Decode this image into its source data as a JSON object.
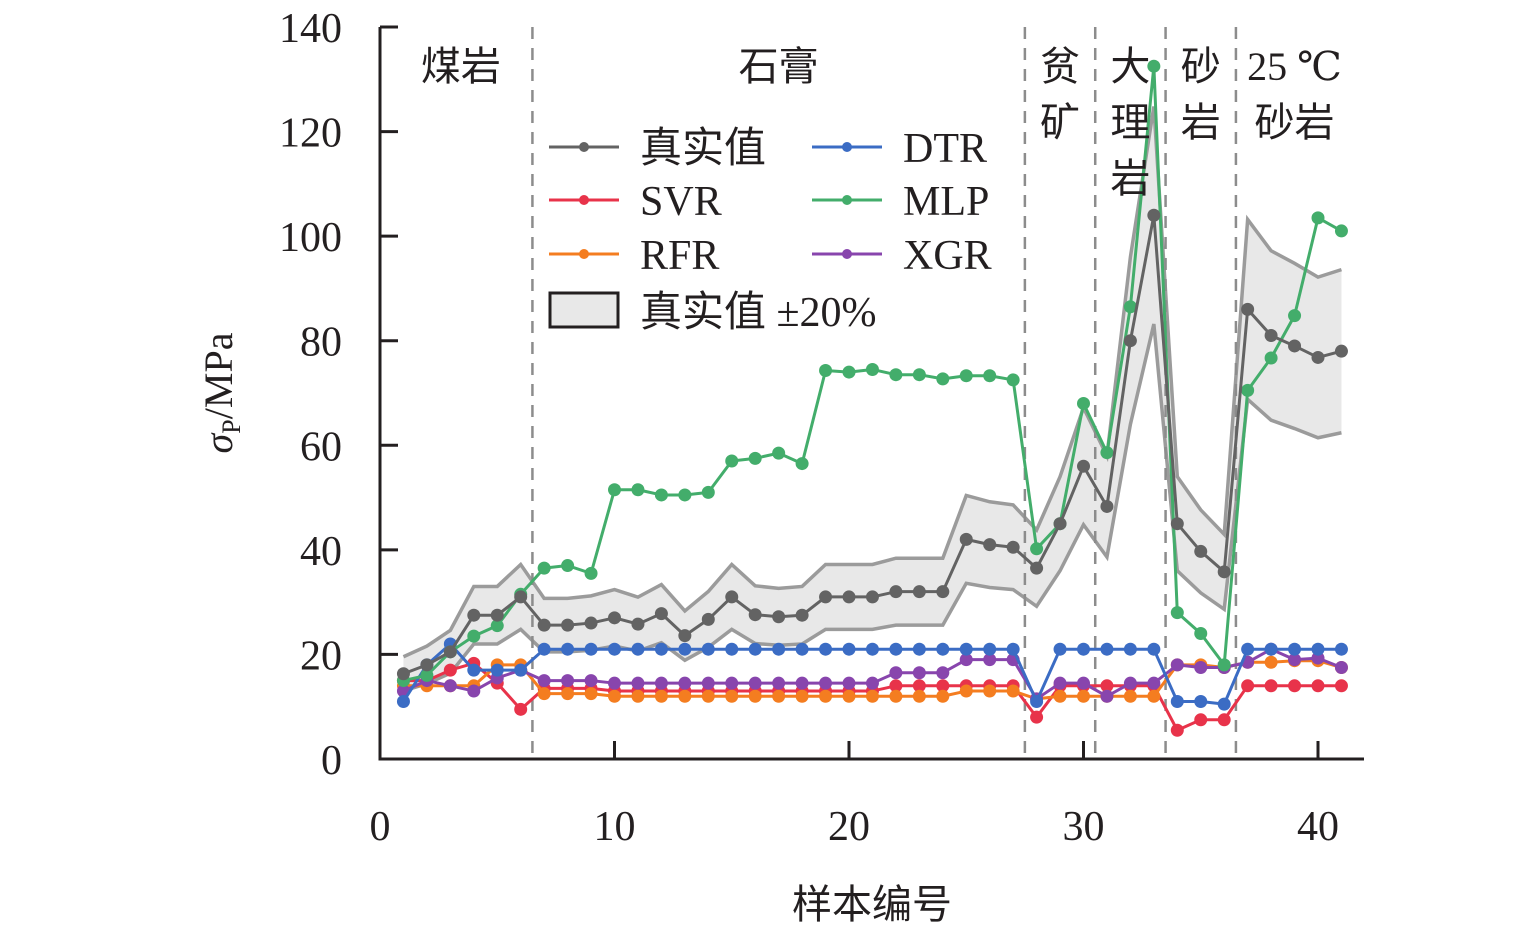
{
  "chart_data": {
    "type": "line",
    "title": "",
    "xlabel": "样本编号",
    "ylabel": "σP/MPa",
    "ylabel_main": "σ",
    "ylabel_sub": "P",
    "ylabel_unit": "/MPa",
    "xlim": [
      0,
      42
    ],
    "ylim": [
      0,
      140
    ],
    "xticks": [
      0,
      10,
      20,
      30,
      40
    ],
    "yticks": [
      0,
      20,
      40,
      60,
      80,
      100,
      120,
      140
    ],
    "grid": false,
    "legend_position": "top-left",
    "x": [
      1,
      2,
      3,
      4,
      5,
      6,
      7,
      8,
      9,
      10,
      11,
      12,
      13,
      14,
      15,
      16,
      17,
      18,
      19,
      20,
      21,
      22,
      23,
      24,
      25,
      26,
      27,
      28,
      29,
      30,
      31,
      32,
      33,
      34,
      35,
      36,
      37,
      38,
      39,
      40,
      41
    ],
    "series": [
      {
        "name": "真实值",
        "color": "#636363",
        "values": [
          16.3,
          18,
          20.5,
          27.5,
          27.5,
          31,
          25.6,
          25.6,
          26,
          27,
          25.8,
          27.8,
          23.6,
          26.7,
          31,
          27.6,
          27.2,
          27.5,
          31,
          31,
          31,
          32,
          32,
          32,
          42,
          41,
          40.5,
          36.5,
          45,
          56,
          48.3,
          80,
          104,
          45,
          39.7,
          35.8,
          86,
          81,
          79,
          76.8,
          78
        ]
      },
      {
        "name": "SVR",
        "color": "#e8334a",
        "values": [
          15,
          15,
          17,
          18.3,
          14.5,
          9.5,
          13.5,
          13.5,
          13.5,
          13,
          13,
          13,
          13,
          13,
          13,
          13,
          13,
          13,
          13,
          13,
          13,
          14,
          14,
          14,
          14,
          14,
          14,
          8,
          14,
          14,
          14,
          14,
          14,
          5.5,
          7.5,
          7.5,
          14,
          14,
          14,
          14,
          14
        ]
      },
      {
        "name": "RFR",
        "color": "#f47d20",
        "values": [
          14,
          14,
          14,
          14,
          18,
          18,
          12.5,
          12.5,
          12.5,
          12,
          12,
          12,
          12,
          12,
          12,
          12,
          12,
          12,
          12,
          12,
          12,
          12,
          12,
          12,
          13,
          13,
          13,
          11.5,
          12,
          12,
          12,
          12,
          12,
          18,
          18,
          17.5,
          18.5,
          18.5,
          18.8,
          18.8,
          17.5
        ]
      },
      {
        "name": "DTR",
        "color": "#3b6cc4",
        "values": [
          11,
          18,
          22,
          17,
          17,
          17,
          21,
          21,
          21,
          21,
          21,
          21,
          21,
          21,
          21,
          21,
          21,
          21,
          21,
          21,
          21,
          21,
          21,
          21,
          21,
          21,
          21,
          11,
          21,
          21,
          21,
          21,
          21,
          11,
          11,
          10.5,
          21,
          21,
          21,
          21,
          21
        ]
      },
      {
        "name": "MLP",
        "color": "#43ad6b",
        "values": [
          15,
          16,
          20.5,
          23.5,
          25.5,
          31.5,
          36.5,
          37,
          35.5,
          51.5,
          51.5,
          50.5,
          50.5,
          51,
          57,
          57.5,
          58.5,
          56.5,
          74.3,
          74,
          74.5,
          73.5,
          73.5,
          72.7,
          73.3,
          73.3,
          72.5,
          40.2,
          45,
          68,
          58.6,
          86.5,
          132.5,
          28,
          24,
          18,
          70.5,
          76.7,
          84.8,
          103.5,
          101
        ]
      },
      {
        "name": "XGR",
        "color": "#8845ad",
        "values": [
          13,
          15,
          14,
          13,
          15.5,
          17,
          15,
          15,
          15,
          14.5,
          14.5,
          14.5,
          14.5,
          14.5,
          14.5,
          14.5,
          14.5,
          14.5,
          14.5,
          14.5,
          14.5,
          16.5,
          16.5,
          16.5,
          19,
          19,
          19,
          11.5,
          14.5,
          14.5,
          12,
          14.5,
          14.5,
          18,
          17.5,
          17.5,
          18.5,
          21,
          19,
          19.3,
          17.5
        ]
      }
    ],
    "band": {
      "name": "真实值 ±20%",
      "fraction": 0.2,
      "fill": "#e8e8e8",
      "stroke": "#9b9b9b"
    },
    "dividers": [
      6.5,
      27.5,
      30.5,
      33.5,
      36.5
    ],
    "regions": [
      {
        "lines": [
          "煤岩"
        ],
        "from": 0.4,
        "to": 6.5
      },
      {
        "lines": [
          "石膏"
        ],
        "from": 6.5,
        "to": 27.5
      },
      {
        "lines": [
          "贫",
          "矿"
        ],
        "from": 27.5,
        "to": 30.5
      },
      {
        "lines": [
          "大",
          "理",
          "岩"
        ],
        "from": 30.5,
        "to": 33.5
      },
      {
        "lines": [
          "砂",
          "岩"
        ],
        "from": 33.5,
        "to": 36.5
      },
      {
        "lines": [
          "25 ℃",
          "砂岩"
        ],
        "from": 36.5,
        "to": 41.5
      }
    ],
    "legend": {
      "entries": [
        "真实值",
        "DTR",
        "SVR",
        "MLP",
        "RFR",
        "XGR"
      ],
      "band_entry": "真实值 ±20%"
    }
  }
}
